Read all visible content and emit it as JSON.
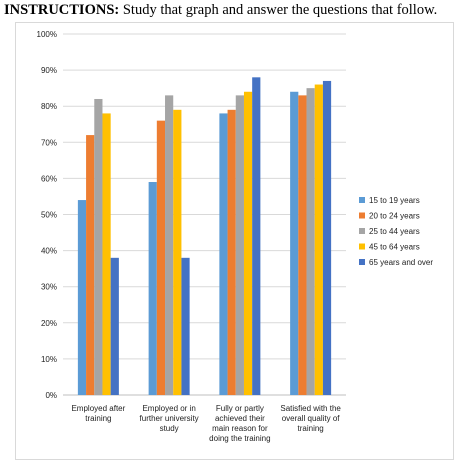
{
  "header": {
    "label": "INSTRUCTIONS:",
    "text": "Study that graph and answer the questions that follow."
  },
  "chart_data": {
    "type": "bar",
    "title": "",
    "xlabel": "",
    "ylabel": "",
    "ylim": [
      0,
      100
    ],
    "y_ticks": [
      "0%",
      "10%",
      "20%",
      "30%",
      "40%",
      "50%",
      "60%",
      "70%",
      "80%",
      "90%",
      "100%"
    ],
    "grid": true,
    "legend_position": "right",
    "categories": [
      [
        "Employed after",
        "training"
      ],
      [
        "Employed or in",
        "further university",
        "study"
      ],
      [
        "Fully or partly",
        "achieved their",
        "main reason for",
        "doing the training"
      ],
      [
        "Satisfied with the",
        "overall quality of",
        "training"
      ]
    ],
    "series": [
      {
        "name": "15 to 19 years",
        "color": "#5b9bd5",
        "values": [
          54,
          59,
          78,
          84
        ]
      },
      {
        "name": "20 to 24 years",
        "color": "#ed7d31",
        "values": [
          72,
          76,
          79,
          83
        ]
      },
      {
        "name": "25 to 44 years",
        "color": "#a5a5a5",
        "values": [
          82,
          83,
          83,
          85
        ]
      },
      {
        "name": "45 to 64 years",
        "color": "#ffc000",
        "values": [
          78,
          79,
          84,
          86
        ]
      },
      {
        "name": "65 years and over",
        "color": "#4472c4",
        "values": [
          38,
          38,
          88,
          87
        ]
      }
    ]
  }
}
